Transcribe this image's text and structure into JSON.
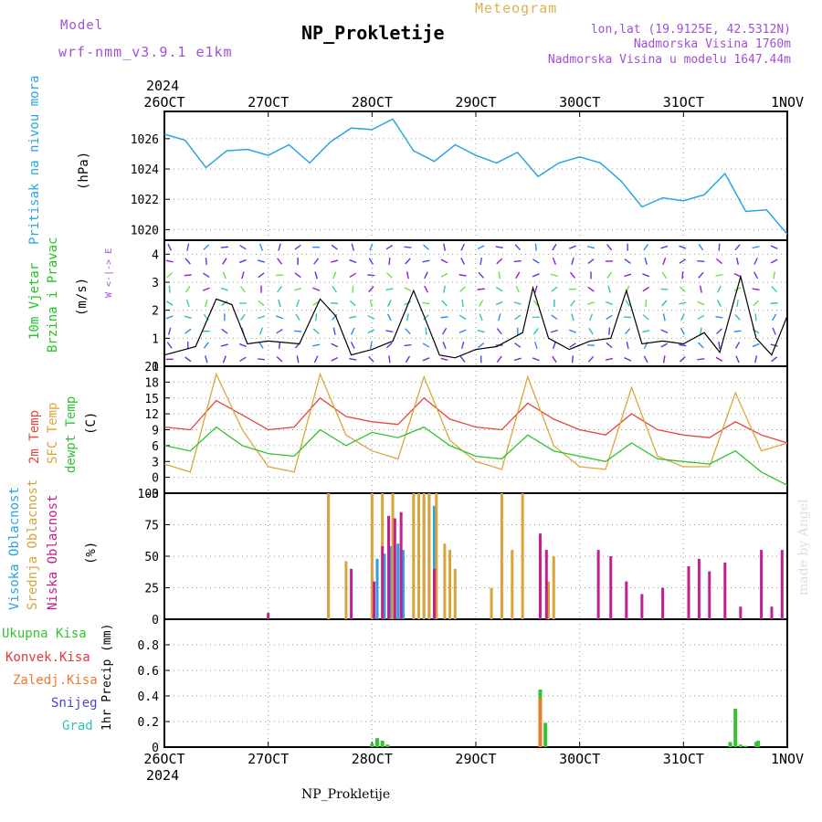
{
  "header": {
    "model_label": "Model",
    "model_name": "wrf-nmm_v3.9.1 e1km",
    "title": "NP_Prokletije",
    "meteogram_label": "Meteogram",
    "lonlat": "lon,lat (19.9125E, 42.5312N)",
    "altitude": "Nadmorska Visina 1760m",
    "model_altitude": "Nadmorska Visina u modelu 1647.44m",
    "footer_title": "NP_Prokletije",
    "watermark": "made by Angel"
  },
  "colors": {
    "pressure": "#29a6e0",
    "wind_label": "#22c422",
    "temp2m": "#e8453c",
    "sfc": "#dca63a",
    "dew": "#2ec42e",
    "high_cloud": "#2aa2e0",
    "mid_cloud": "#d9a33a",
    "low_cloud": "#c2208e",
    "total_precip": "#33c433",
    "conv_precip": "#e03a3a",
    "frozen": "#ef7a2a",
    "snow": "#4444dd",
    "hail": "#2bc4b8",
    "purple_text": "#a050d8",
    "gold_text": "#e0b050"
  },
  "time_axis": {
    "year": "2024",
    "ticks": [
      "26OCT",
      "27OCT",
      "28OCT",
      "29OCT",
      "30OCT",
      "31OCT",
      "1NOV"
    ]
  },
  "chart_data": [
    {
      "type": "line",
      "id": "pressure",
      "ylabel": "Pritisak na nivou mora",
      "unit": "(hPa)",
      "ylim": [
        1019.3,
        1027.8
      ],
      "yticks": [
        1020,
        1022,
        1024,
        1026
      ],
      "x": [
        0,
        0.2,
        0.4,
        0.6,
        0.8,
        1.0,
        1.2,
        1.4,
        1.6,
        1.8,
        2.0,
        2.2,
        2.4,
        2.6,
        2.8,
        3.0,
        3.2,
        3.4,
        3.6,
        3.8,
        4.0,
        4.2,
        4.4,
        4.6,
        4.8,
        5.0,
        5.2,
        5.4,
        5.6,
        5.8,
        6.0
      ],
      "y": [
        1026.3,
        1025.9,
        1024.1,
        1025.2,
        1025.3,
        1024.9,
        1025.6,
        1024.4,
        1025.8,
        1026.7,
        1026.6,
        1027.3,
        1025.2,
        1024.5,
        1025.6,
        1024.9,
        1024.4,
        1025.1,
        1023.5,
        1024.4,
        1024.8,
        1024.4,
        1023.2,
        1021.5,
        1022.1,
        1021.9,
        1022.3,
        1023.7,
        1021.2,
        1021.3,
        1019.7
      ]
    },
    {
      "type": "line",
      "id": "wind",
      "ylabel": [
        "10m Vjetar",
        "Brzina i Pravac"
      ],
      "unit": "(m/s)",
      "ylim": [
        0,
        4.5
      ],
      "yticks": [
        0,
        1,
        2,
        3,
        4
      ],
      "compass": "W <-|-> E",
      "x": [
        0,
        0.3,
        0.5,
        0.65,
        0.8,
        1.0,
        1.3,
        1.5,
        1.65,
        1.8,
        2.0,
        2.2,
        2.4,
        2.5,
        2.65,
        2.8,
        3.0,
        3.2,
        3.45,
        3.55,
        3.7,
        3.9,
        4.1,
        4.3,
        4.45,
        4.6,
        4.8,
        5.0,
        5.2,
        5.35,
        5.55,
        5.7,
        5.85,
        6.0
      ],
      "y": [
        0.4,
        0.7,
        2.4,
        2.2,
        0.8,
        0.9,
        0.8,
        2.4,
        1.8,
        0.4,
        0.6,
        0.9,
        2.7,
        1.8,
        0.4,
        0.3,
        0.6,
        0.7,
        1.2,
        2.8,
        1.0,
        0.6,
        0.9,
        1.0,
        2.7,
        0.8,
        0.9,
        0.8,
        1.2,
        0.5,
        3.2,
        1.0,
        0.4,
        1.8
      ]
    },
    {
      "type": "line",
      "id": "temperature",
      "ylabel": [
        "2m Temp",
        "SFC Temp",
        "dewpt Temp"
      ],
      "unit": "(C)",
      "ylim": [
        -3,
        21
      ],
      "yticks": [
        -3,
        0,
        3,
        6,
        9,
        12,
        15,
        18,
        21
      ],
      "x": [
        0,
        0.25,
        0.5,
        0.75,
        1.0,
        1.25,
        1.5,
        1.75,
        2.0,
        2.25,
        2.5,
        2.75,
        3.0,
        3.25,
        3.5,
        3.75,
        4.0,
        4.25,
        4.5,
        4.75,
        5.0,
        5.25,
        5.5,
        5.75,
        6.0
      ],
      "series": [
        {
          "name": "2m Temp",
          "color": "#e8453c",
          "values": [
            9.5,
            9.0,
            14.5,
            11.8,
            9.0,
            9.5,
            15.0,
            11.5,
            10.5,
            10.0,
            15.0,
            11.0,
            9.5,
            9.0,
            14.0,
            11.0,
            9.0,
            8.0,
            12.0,
            9.0,
            8.0,
            7.5,
            10.5,
            8.0,
            6.5
          ]
        },
        {
          "name": "SFC Temp",
          "color": "#dca63a",
          "values": [
            2.5,
            1.0,
            19.5,
            9.0,
            2.0,
            1.0,
            19.5,
            8.0,
            5.0,
            3.5,
            19.0,
            7.0,
            3.0,
            1.5,
            19.0,
            6.0,
            2.0,
            1.5,
            17.0,
            4.0,
            2.0,
            2.0,
            16.0,
            5.0,
            6.5
          ]
        },
        {
          "name": "dewpt Temp",
          "color": "#2ec42e",
          "values": [
            6.0,
            5.0,
            9.5,
            6.0,
            4.5,
            4.0,
            9.0,
            6.0,
            8.5,
            7.5,
            9.5,
            6.0,
            4.0,
            3.5,
            8.0,
            5.0,
            4.0,
            3.0,
            6.5,
            3.5,
            3.0,
            2.5,
            5.0,
            1.0,
            -1.5
          ]
        }
      ]
    },
    {
      "type": "bar",
      "id": "cloud",
      "ylabel": [
        "Visoka Oblacnost",
        "Srednja Oblacnost",
        "Niska Oblacnost"
      ],
      "unit": "(%)",
      "ylim": [
        0,
        100
      ],
      "yticks": [
        0,
        25,
        50,
        75,
        100
      ],
      "series": [
        {
          "name": "Visoka Oblacnost",
          "color": "#2aa2e0",
          "x": [
            1.58,
            2.05,
            2.12,
            2.18,
            2.25,
            2.3,
            2.5,
            2.55,
            2.6
          ],
          "values": [
            100,
            48,
            52,
            58,
            60,
            55,
            95,
            100,
            90
          ]
        },
        {
          "name": "Srednja Oblacnost",
          "color": "#d9a33a",
          "x": [
            1.58,
            1.75,
            2.0,
            2.1,
            2.2,
            2.4,
            2.45,
            2.5,
            2.55,
            2.62,
            2.7,
            2.75,
            2.8,
            3.15,
            3.25,
            3.35,
            3.45,
            3.7,
            3.75
          ],
          "values": [
            100,
            46,
            100,
            100,
            100,
            100,
            100,
            100,
            100,
            100,
            60,
            55,
            40,
            25,
            100,
            55,
            100,
            30,
            50
          ]
        },
        {
          "name": "Niska Oblacnost",
          "color": "#c2208e",
          "x": [
            1.0,
            1.8,
            2.02,
            2.1,
            2.16,
            2.22,
            2.28,
            2.6,
            3.62,
            3.68,
            4.18,
            4.3,
            4.45,
            4.6,
            4.8,
            5.05,
            5.15,
            5.25,
            5.4,
            5.55,
            5.75,
            5.85,
            5.95
          ],
          "values": [
            5,
            40,
            30,
            58,
            82,
            80,
            85,
            40,
            68,
            55,
            55,
            50,
            30,
            20,
            25,
            42,
            48,
            38,
            45,
            10,
            55,
            10,
            55
          ]
        }
      ]
    },
    {
      "type": "bar",
      "id": "precip",
      "ylabel": "1hr Precip (mm)",
      "ylim": [
        0,
        1.0
      ],
      "yticks": [
        0,
        0.2,
        0.4,
        0.6,
        0.8
      ],
      "legend": [
        "Ukupna Kisa",
        "Konvek.Kisa",
        "Zaledj.Kisa",
        "Snijeg",
        "Grad"
      ],
      "series": [
        {
          "name": "Ukupna Kisa",
          "color": "#33c433",
          "x": [
            2.0,
            2.05,
            2.1,
            2.15,
            3.62,
            3.67,
            5.45,
            5.5,
            5.55,
            5.6,
            5.7,
            5.72
          ],
          "values": [
            0.03,
            0.07,
            0.05,
            0.02,
            0.45,
            0.19,
            0.04,
            0.3,
            0.02,
            0.01,
            0.04,
            0.05
          ]
        },
        {
          "name": "Zaledj.Kisa",
          "color": "#ef7a2a",
          "x": [
            3.62
          ],
          "values": [
            0.38
          ]
        }
      ]
    }
  ]
}
